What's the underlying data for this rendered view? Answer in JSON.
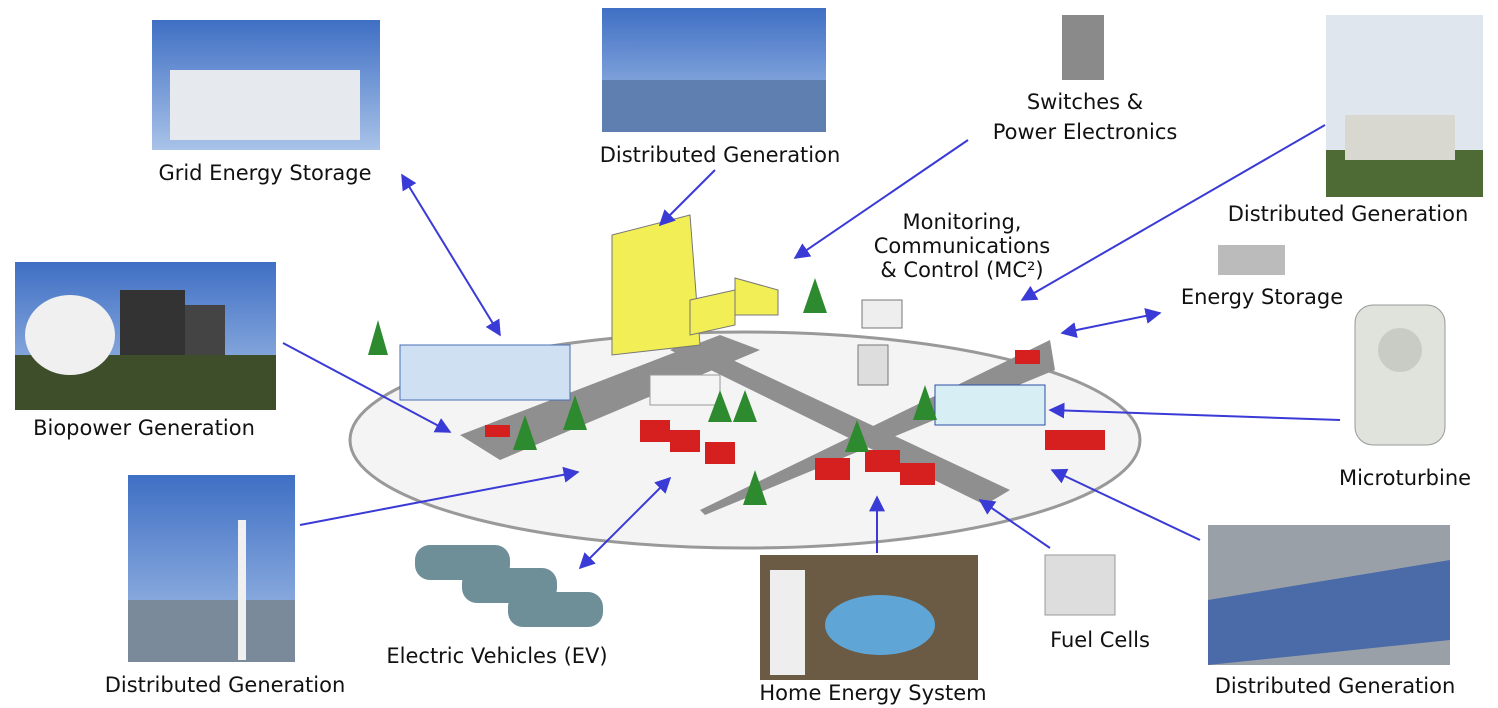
{
  "nodes": [
    {
      "label": [
        "Grid Energy Storage"
      ]
    },
    {
      "label": [
        "Distributed Generation"
      ]
    },
    {
      "label": [
        "Switches &",
        "Power Electronics"
      ]
    },
    {
      "label": [
        "Distributed Generation"
      ]
    },
    {
      "label": [
        "Monitoring,",
        "Communications",
        "& Control (MC²)"
      ]
    },
    {
      "label": [
        "Energy Storage"
      ]
    },
    {
      "label": [
        "Biopower Generation"
      ]
    },
    {
      "label": [
        "Microturbine"
      ]
    },
    {
      "label": [
        "Distributed Generation"
      ]
    },
    {
      "label": [
        "Electric Vehicles (EV)"
      ]
    },
    {
      "label": [
        "Home Energy System"
      ]
    },
    {
      "label": [
        "Fuel Cells"
      ]
    },
    {
      "label": [
        "Distributed Generation"
      ]
    }
  ]
}
